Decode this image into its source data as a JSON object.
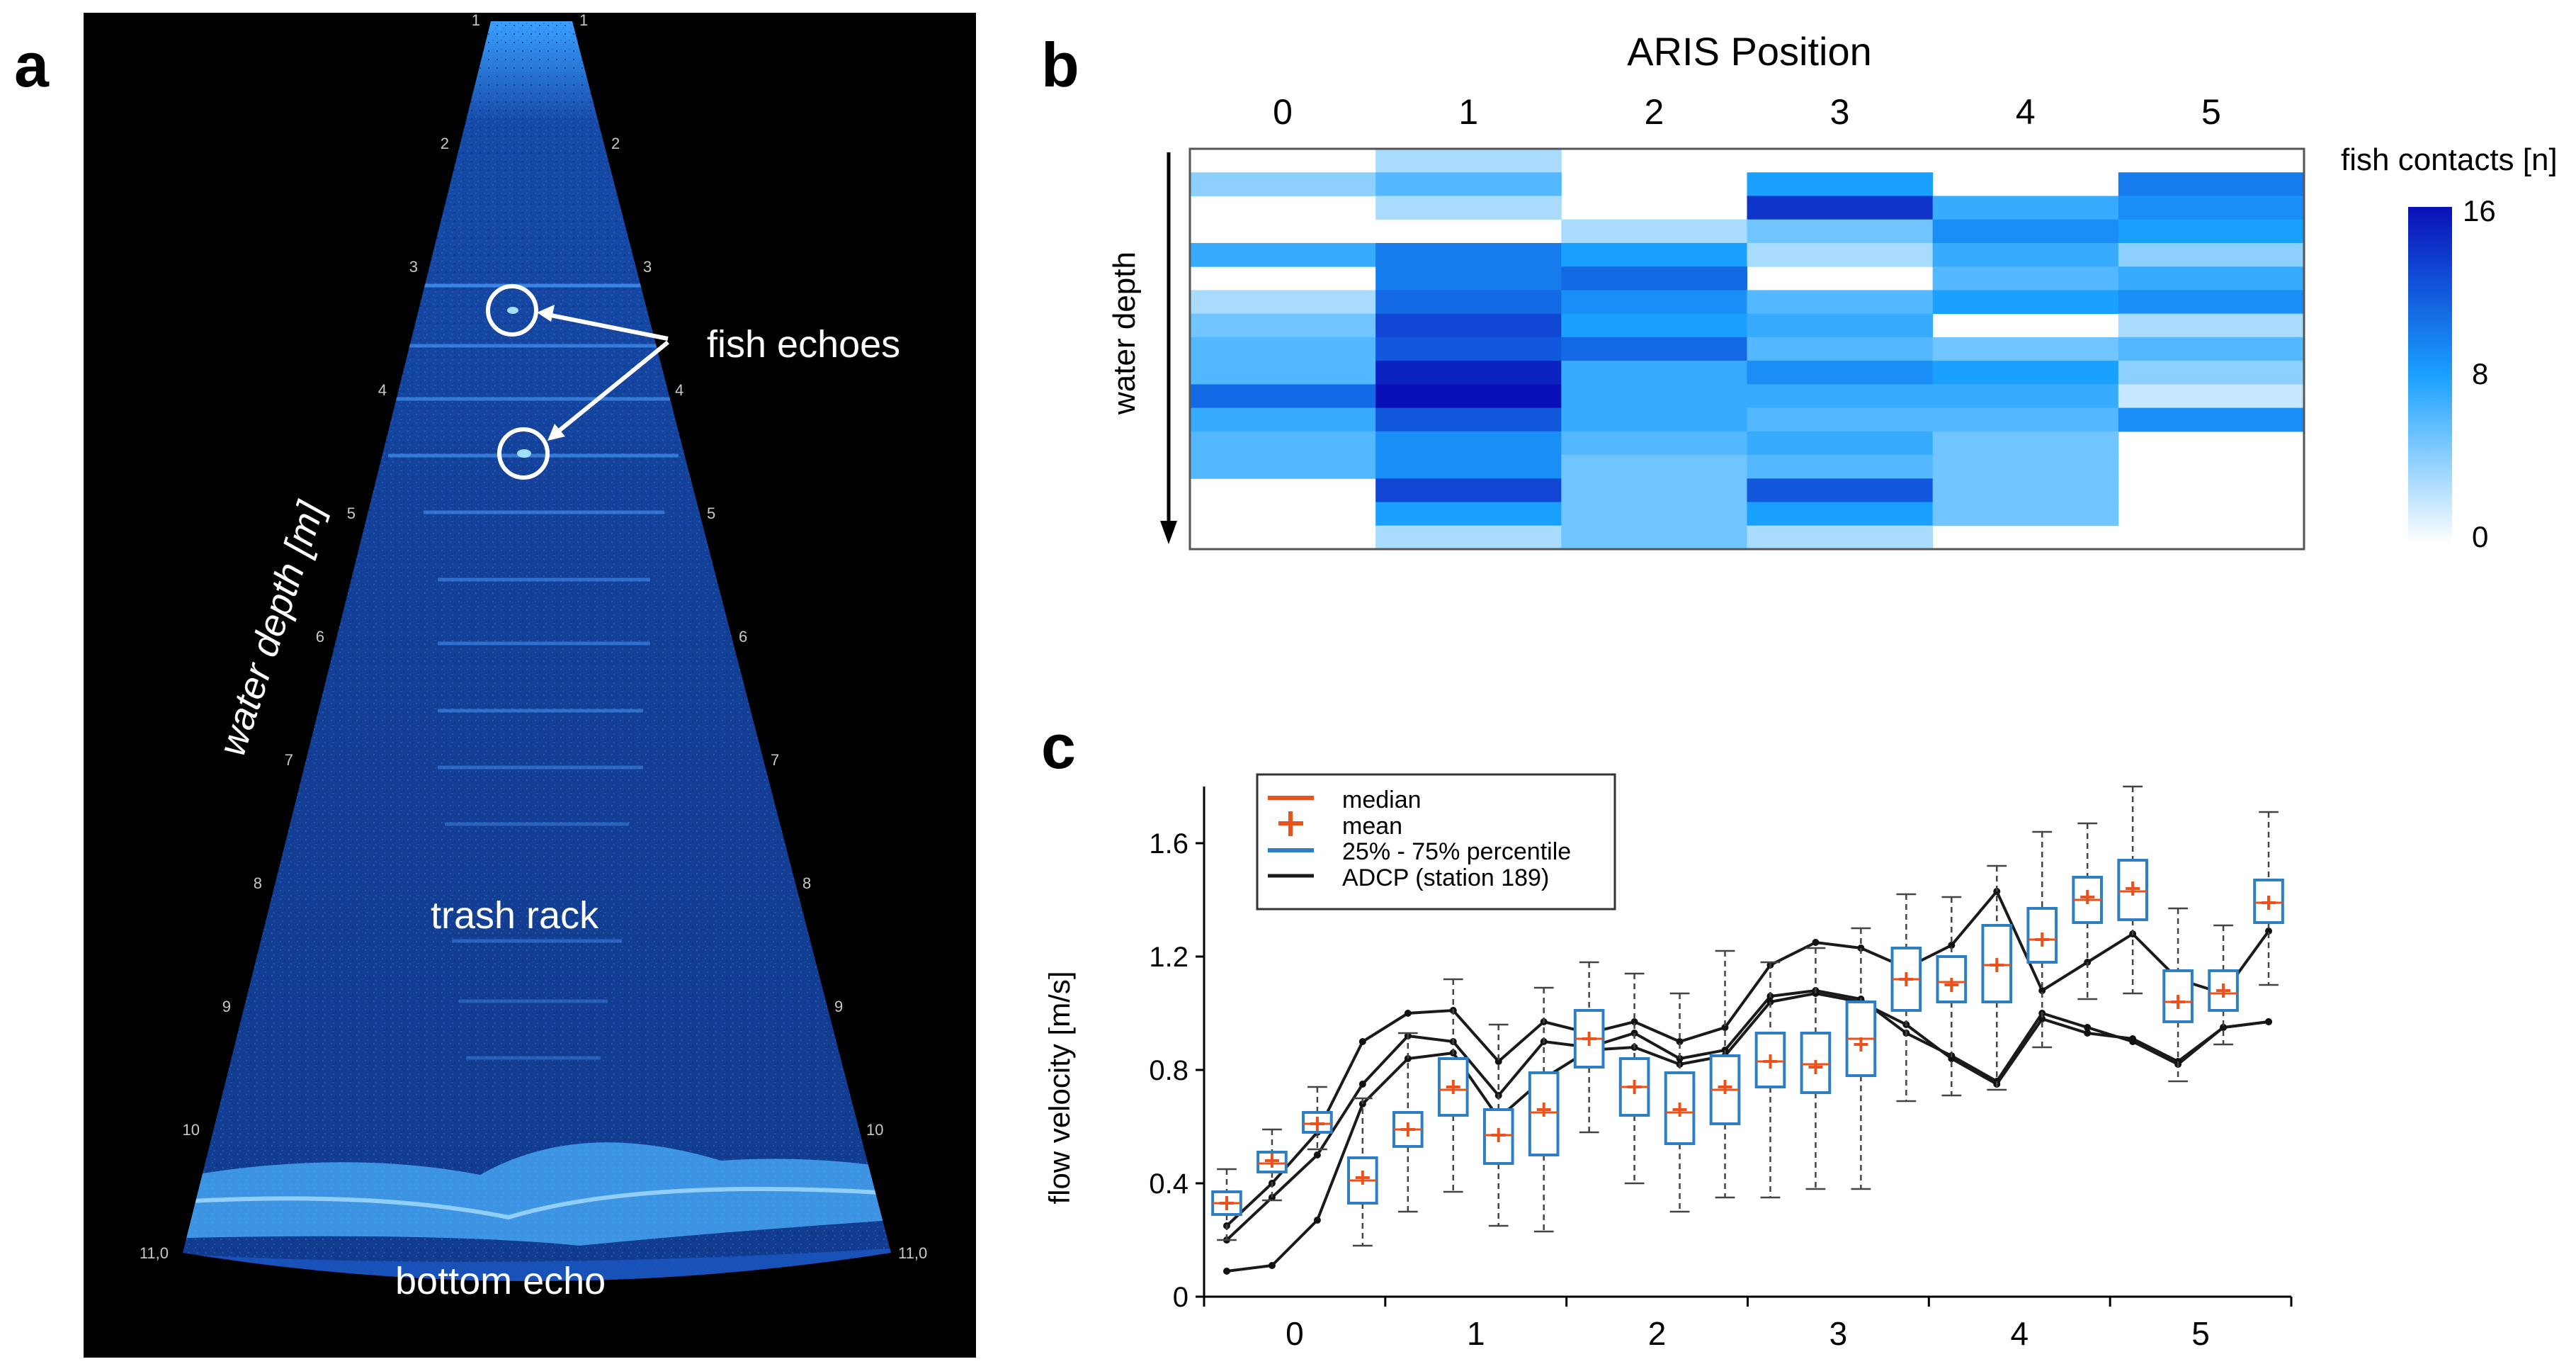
{
  "panels": {
    "a": "a",
    "b": "b",
    "c": "c"
  },
  "panel_a": {
    "range_marks_left": [
      "1",
      "2",
      "3",
      "4",
      "5",
      "6",
      "7",
      "8",
      "9",
      "10",
      "11,0"
    ],
    "range_marks_right": [
      "1",
      "2",
      "3",
      "4",
      "5",
      "6",
      "7",
      "8",
      "9",
      "10",
      "11,0"
    ],
    "annotations": {
      "fish_echoes": "fish echoes",
      "trash_rack": "trash rack",
      "bottom_echo": "bottom echo",
      "water_depth": "water depth [m]"
    },
    "colors": {
      "sonar": "#1f6fe0",
      "background": "#000000",
      "annotation": "#ffffff"
    }
  },
  "chart_data": [
    {
      "type": "heatmap",
      "title": "ARIS Position",
      "columns": [
        "0",
        "1",
        "2",
        "3",
        "4",
        "5"
      ],
      "ylabel": "water depth",
      "colorbar": {
        "label": "fish contacts [n]",
        "ticks": [
          "16",
          "8",
          "0"
        ],
        "min": 0,
        "max": 16,
        "colors": [
          "#ffffff",
          "#1aa0ff",
          "#0a10b8"
        ]
      },
      "rows": 17,
      "cells": [
        [
          null,
          3,
          null,
          null,
          null,
          null
        ],
        [
          4,
          6,
          null,
          8,
          null,
          10
        ],
        [
          null,
          3,
          null,
          14,
          7,
          9
        ],
        [
          null,
          null,
          3,
          5,
          9,
          8
        ],
        [
          7,
          10,
          8,
          3,
          7,
          4
        ],
        [
          null,
          10,
          11,
          null,
          6,
          7
        ],
        [
          3,
          11,
          9,
          6,
          8,
          9
        ],
        [
          5,
          13,
          8,
          7,
          null,
          3
        ],
        [
          6,
          12,
          11,
          6,
          5,
          6
        ],
        [
          6,
          15,
          7,
          9,
          8,
          4
        ],
        [
          11,
          16,
          7,
          7,
          7,
          2
        ],
        [
          7,
          12,
          7,
          6,
          6,
          9
        ],
        [
          6,
          9,
          6,
          7,
          5,
          null
        ],
        [
          6,
          9,
          5,
          6,
          5,
          null
        ],
        [
          null,
          13,
          5,
          12,
          5,
          null
        ],
        [
          null,
          8,
          5,
          8,
          5,
          null
        ],
        [
          null,
          3,
          5,
          3,
          null,
          null
        ]
      ]
    },
    {
      "type": "box",
      "xlabel": "",
      "ylabel": "flow velocity [m/s]",
      "ylim": [
        0,
        1.8
      ],
      "yticks": [
        "0",
        "0.4",
        "0.8",
        "1.2",
        "1.6"
      ],
      "xticks": [
        "0",
        "1",
        "2",
        "3",
        "4",
        "5"
      ],
      "xlim": [
        -0.5,
        5.5
      ],
      "legend": {
        "position": "top-left",
        "entries": [
          "median",
          "mean",
          "25% - 75% percentile",
          "ADCP (station 189)"
        ]
      },
      "colors": {
        "box": "#2e7ec4",
        "median": "#e8521c",
        "adcp": "#1a1a1a"
      },
      "boxes": [
        {
          "x": -0.42,
          "q1": 0.29,
          "q3": 0.37,
          "median": 0.33,
          "mean": 0.33,
          "whisker_low": 0.2,
          "whisker_high": 0.45
        },
        {
          "x": -0.09,
          "q1": 0.44,
          "q3": 0.51,
          "median": 0.47,
          "mean": 0.48,
          "whisker_low": 0.34,
          "whisker_high": 0.59
        },
        {
          "x": 0.24,
          "q1": 0.58,
          "q3": 0.65,
          "median": 0.61,
          "mean": 0.61,
          "whisker_low": 0.52,
          "whisker_high": 0.74
        },
        {
          "x": 0.57,
          "q1": 0.33,
          "q3": 0.49,
          "median": 0.41,
          "mean": 0.42,
          "whisker_low": 0.18,
          "whisker_high": 0.7
        },
        {
          "x": 0.9,
          "q1": 0.53,
          "q3": 0.65,
          "median": 0.59,
          "mean": 0.59,
          "whisker_low": 0.3,
          "whisker_high": 0.93
        },
        {
          "x": 1.23,
          "q1": 0.64,
          "q3": 0.84,
          "median": 0.73,
          "mean": 0.74,
          "whisker_low": 0.37,
          "whisker_high": 1.12
        },
        {
          "x": 1.56,
          "q1": 0.47,
          "q3": 0.66,
          "median": 0.57,
          "mean": 0.57,
          "whisker_low": 0.25,
          "whisker_high": 0.96
        },
        {
          "x": 1.89,
          "q1": 0.5,
          "q3": 0.79,
          "median": 0.65,
          "mean": 0.66,
          "whisker_low": 0.23,
          "whisker_high": 1.09
        },
        {
          "x": 2.22,
          "q1": 0.81,
          "q3": 1.01,
          "median": 0.91,
          "mean": 0.91,
          "whisker_low": 0.58,
          "whisker_high": 1.18
        },
        {
          "x": 2.55,
          "q1": 0.64,
          "q3": 0.84,
          "median": 0.74,
          "mean": 0.74,
          "whisker_low": 0.4,
          "whisker_high": 1.14
        },
        {
          "x": 2.88,
          "q1": 0.54,
          "q3": 0.79,
          "median": 0.65,
          "mean": 0.66,
          "whisker_low": 0.3,
          "whisker_high": 1.07
        },
        {
          "x": 3.21,
          "q1": 0.61,
          "q3": 0.85,
          "median": 0.73,
          "mean": 0.74,
          "whisker_low": 0.35,
          "whisker_high": 1.22
        },
        {
          "x": 3.54,
          "q1": 0.74,
          "q3": 0.93,
          "median": 0.83,
          "mean": 0.83,
          "whisker_low": 0.35,
          "whisker_high": 1.18
        },
        {
          "x": 3.87,
          "q1": 0.72,
          "q3": 0.93,
          "median": 0.82,
          "mean": 0.81,
          "whisker_low": 0.38,
          "whisker_high": 1.23
        },
        {
          "x": 4.2,
          "q1": 0.78,
          "q3": 1.04,
          "median": 0.91,
          "mean": 0.89,
          "whisker_low": 0.38,
          "whisker_high": 1.3
        },
        {
          "x": 4.53,
          "q1": 1.01,
          "q3": 1.23,
          "median": 1.12,
          "mean": 1.12,
          "whisker_low": 0.69,
          "whisker_high": 1.42
        },
        {
          "x": 4.86,
          "q1": 1.04,
          "q3": 1.2,
          "median": 1.11,
          "mean": 1.1,
          "whisker_low": 0.71,
          "whisker_high": 1.41
        },
        {
          "x": 5.19,
          "q1": 1.04,
          "q3": 1.31,
          "median": 1.17,
          "mean": 1.17,
          "whisker_low": 0.73,
          "whisker_high": 1.52
        },
        {
          "x": 5.52,
          "q1": 1.18,
          "q3": 1.37,
          "median": 1.26,
          "mean": 1.26,
          "whisker_low": 0.88,
          "whisker_high": 1.64
        },
        {
          "x": 5.85,
          "q1": 1.32,
          "q3": 1.48,
          "median": 1.4,
          "mean": 1.41,
          "whisker_low": 1.05,
          "whisker_high": 1.67
        },
        {
          "x": 6.18,
          "q1": 1.33,
          "q3": 1.54,
          "median": 1.43,
          "mean": 1.44,
          "whisker_low": 1.07,
          "whisker_high": 1.8
        },
        {
          "x": 6.51,
          "q1": 0.97,
          "q3": 1.15,
          "median": 1.04,
          "mean": 1.04,
          "whisker_low": 0.76,
          "whisker_high": 1.37
        },
        {
          "x": 6.84,
          "q1": 1.01,
          "q3": 1.15,
          "median": 1.07,
          "mean": 1.08,
          "whisker_low": 0.89,
          "whisker_high": 1.31
        },
        {
          "x": 7.17,
          "q1": 1.32,
          "q3": 1.47,
          "median": 1.39,
          "mean": 1.39,
          "whisker_low": 1.1,
          "whisker_high": 1.71
        }
      ],
      "adcp_lines": [
        [
          0.25,
          0.4,
          0.58,
          0.9,
          1.0,
          1.01,
          0.83,
          0.97,
          0.93,
          0.97,
          0.9,
          0.95,
          1.17,
          1.25,
          1.23,
          1.16,
          1.24,
          1.43,
          1.08,
          1.18,
          1.28,
          1.12,
          1.07,
          1.29
        ],
        [
          0.2,
          0.35,
          0.5,
          0.75,
          0.92,
          0.9,
          0.71,
          0.9,
          0.88,
          0.93,
          0.84,
          0.87,
          1.06,
          1.08,
          1.05,
          0.93,
          0.85,
          0.76,
          1.0,
          0.95,
          0.9,
          0.82,
          0.95,
          0.97
        ],
        [
          0.09,
          0.11,
          0.27,
          0.68,
          0.84,
          0.86,
          0.63,
          0.77,
          0.87,
          0.88,
          0.82,
          0.85,
          1.04,
          1.07,
          1.04,
          0.96,
          0.84,
          0.75,
          0.98,
          0.93,
          0.91,
          0.83,
          0.95,
          0.97
        ]
      ]
    }
  ]
}
